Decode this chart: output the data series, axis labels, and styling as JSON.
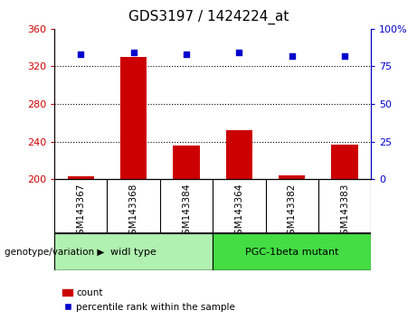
{
  "title": "GDS3197 / 1424224_at",
  "samples": [
    "GSM143367",
    "GSM143368",
    "GSM143384",
    "GSM143364",
    "GSM143382",
    "GSM143383"
  ],
  "counts": [
    203,
    330,
    236,
    252,
    204,
    237
  ],
  "percentiles": [
    83,
    84,
    83,
    84,
    82,
    82
  ],
  "ylim_left": [
    200,
    360
  ],
  "ylim_right": [
    0,
    100
  ],
  "yticks_left": [
    200,
    240,
    280,
    320,
    360
  ],
  "yticks_right": [
    0,
    25,
    50,
    75,
    100
  ],
  "ytick_labels_right": [
    "0",
    "25",
    "50",
    "75",
    "100%"
  ],
  "grid_values": [
    240,
    280,
    320
  ],
  "bar_color": "#cc0000",
  "dot_color": "#0000cc",
  "group_labels": [
    "widl type",
    "PGC-1beta mutant"
  ],
  "group_color_light": "#b0f0b0",
  "group_color_dark": "#44dd44",
  "group_label_prefix": "genotype/variation",
  "legend_count": "count",
  "legend_percentile": "percentile rank within the sample",
  "tick_color_left": "#cc0000",
  "tick_color_right": "#0000cc",
  "bar_width": 0.5,
  "fig_width": 4.61,
  "fig_height": 3.54,
  "dpi": 100
}
